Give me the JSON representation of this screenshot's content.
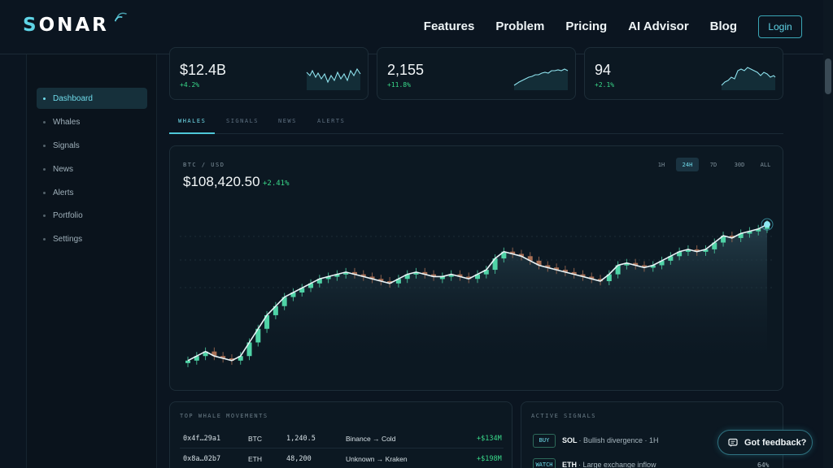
{
  "brand": {
    "name_first": "S",
    "name_rest": "ONAR"
  },
  "nav": {
    "links": [
      "Features",
      "Problem",
      "Pricing",
      "AI Advisor",
      "Blog"
    ],
    "login": "Login"
  },
  "sidebar": {
    "items": [
      {
        "label": "Dashboard",
        "active": true
      },
      {
        "label": "Whales"
      },
      {
        "label": "Signals"
      },
      {
        "label": "News"
      },
      {
        "label": "Alerts"
      },
      {
        "label": "Portfolio"
      },
      {
        "label": "Settings"
      }
    ]
  },
  "stats": [
    {
      "value": "$12.4B",
      "change": "+4.2%"
    },
    {
      "value": "2,155",
      "change": "+11.8%"
    },
    {
      "value": "94",
      "change": "+2.1%"
    }
  ],
  "tabs": [
    "WHALES",
    "SIGNALS",
    "NEWS",
    "ALERTS"
  ],
  "chart": {
    "pair": "BTC / USD",
    "price": "$108,420.50",
    "change": "+2.41%",
    "ranges": [
      "1H",
      "24H",
      "7D",
      "30D",
      "ALL"
    ],
    "active_range": "24H"
  },
  "chart_data": {
    "type": "line",
    "values": [
      92,
      93,
      94,
      93,
      92.5,
      92,
      93,
      96,
      99,
      102,
      104,
      106,
      107,
      108,
      109,
      110,
      110.5,
      111,
      111.5,
      111,
      110.5,
      110,
      109.5,
      109,
      110,
      111,
      111.5,
      111,
      110.5,
      110.5,
      111,
      110.5,
      110,
      111,
      112,
      114.5,
      116,
      115.5,
      115,
      114,
      113,
      112.5,
      112,
      111.5,
      111,
      110.5,
      110,
      109.5,
      111,
      113,
      113.5,
      113,
      112.5,
      113,
      114,
      115,
      116,
      116.5,
      116,
      116.5,
      118,
      119.5,
      119,
      120,
      120.5,
      121,
      122
    ]
  },
  "whales": {
    "title": "TOP WHALE MOVEMENTS",
    "rows": [
      {
        "addr": "0x4f…29a1",
        "asset": "BTC",
        "amount": "1,240.5",
        "route": "Binance → Cold",
        "value": "+$134M"
      },
      {
        "addr": "0x8a…02b7",
        "asset": "ETH",
        "amount": "48,200",
        "route": "Unknown → Kraken",
        "value": "+$198M"
      }
    ]
  },
  "signals": {
    "title": "ACTIVE SIGNALS",
    "rows": [
      {
        "badge": "BUY",
        "sym": "SOL",
        "desc": " · Bullish divergence · 1H",
        "pct": ""
      },
      {
        "badge": "WATCH",
        "sym": "ETH",
        "desc": " · Large exchange inflow",
        "pct": "64%"
      }
    ]
  },
  "feedback": "Got feedback?"
}
